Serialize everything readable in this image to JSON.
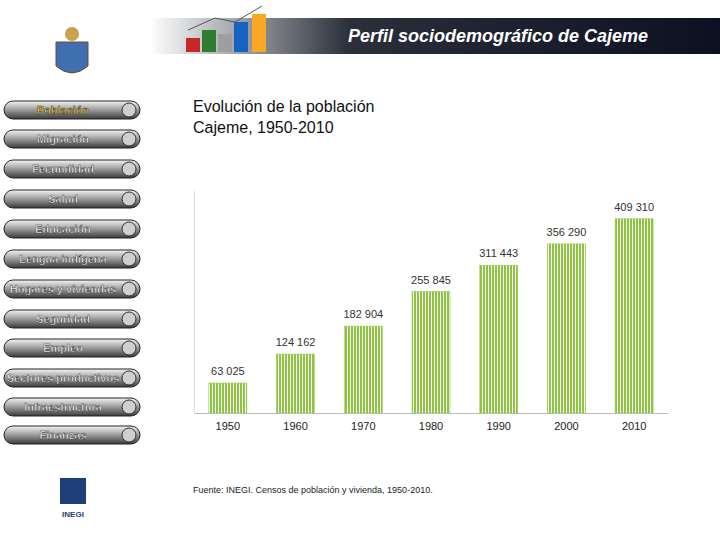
{
  "slide": {
    "header": "Perfil sociodemográfico de Cajeme",
    "menu": [
      "Población",
      "Migración",
      "Fecundidad",
      "Salud",
      "Educación",
      "Lengua indígena",
      "Hogares y viviendas",
      "Seguridad",
      "Empleo",
      "Sectores productivos",
      "Infraestructura",
      "Finanzas"
    ],
    "logo": "INEGI",
    "source": "Fuente: INEGI. Censos de población y vivienda, 1950-2010."
  },
  "chart_data": {
    "type": "bar",
    "title": "Evolución de la población\nCajeme, 1950-2010",
    "categories": [
      "1950",
      "1960",
      "1970",
      "1980",
      "1990",
      "2000",
      "2010"
    ],
    "values": [
      63025,
      124162,
      182904,
      255845,
      311443,
      356290,
      409310
    ],
    "value_labels": [
      "63 025",
      "124 162",
      "182 904",
      "255 845",
      "311 443",
      "356 290",
      "409 310"
    ],
    "data_labels": true,
    "color": "#8cc63f",
    "ylim": [
      0,
      470000
    ],
    "yticks": [],
    "tick_labels": "x",
    "grid": false
  }
}
